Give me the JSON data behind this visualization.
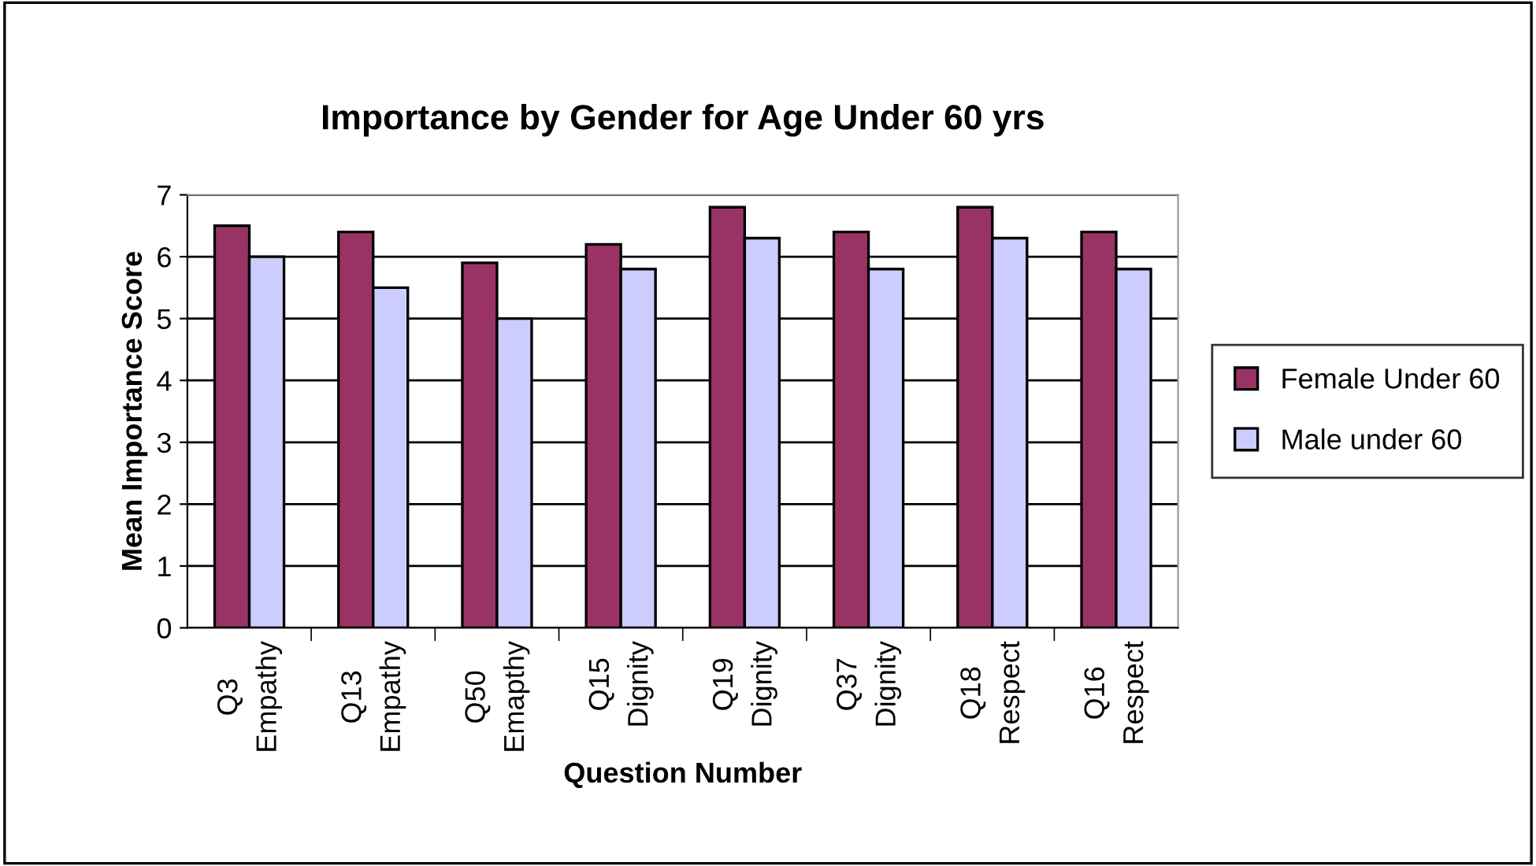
{
  "chart_data": {
    "type": "bar",
    "title": "Importance by Gender for Age Under 60 yrs",
    "xlabel": "Question Number",
    "ylabel": "Mean Importance Score",
    "categories": [
      "Q3\nEmpathy",
      "Q13\nEmpathy",
      "Q50\nEmapthy",
      "Q15\nDignity",
      "Q19\nDignity",
      "Q37\nDignity",
      "Q18\nRespect",
      "Q16\nRespect"
    ],
    "series": [
      {
        "name": "Female Under 60",
        "color": "#993366",
        "values": [
          6.5,
          6.4,
          5.9,
          6.2,
          6.8,
          6.4,
          6.8,
          6.4
        ]
      },
      {
        "name": "Male under 60",
        "color": "#ccccff",
        "values": [
          6.0,
          5.5,
          5.0,
          5.8,
          6.3,
          5.8,
          6.3,
          5.8
        ]
      }
    ],
    "ylim": [
      0,
      7
    ],
    "yticks": [
      0,
      1,
      2,
      3,
      4,
      5,
      6,
      7
    ],
    "grid": "y",
    "legend": "right"
  }
}
